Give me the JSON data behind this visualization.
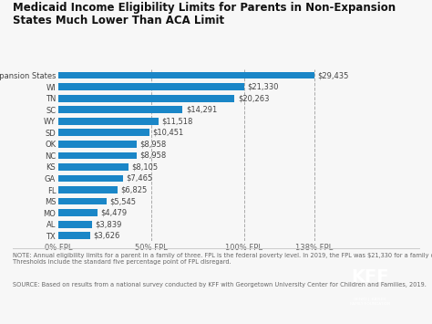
{
  "title_line1": "Medicaid Income Eligibility Limits for Parents in Non-Expansion",
  "title_line2": "States Much Lower Than ACA Limit",
  "categories": [
    "Expansion States",
    "WI",
    "TN",
    "SC",
    "WY",
    "SD",
    "OK",
    "NC",
    "KS",
    "GA",
    "FL",
    "MS",
    "MO",
    "AL",
    "TX"
  ],
  "values": [
    29435,
    21330,
    20263,
    14291,
    11518,
    10451,
    8958,
    8958,
    8105,
    7465,
    6825,
    5545,
    4479,
    3839,
    3626
  ],
  "labels": [
    "$29,435",
    "$21,330",
    "$20,263",
    "$14,291",
    "$11,518",
    "$10,451",
    "$8,958",
    "$8,958",
    "$8,105",
    "$7,465",
    "$6,825",
    "$5,545",
    "$4,479",
    "$3,839",
    "$3,626"
  ],
  "bar_color": "#1a86c7",
  "background_color": "#f7f7f7",
  "x_tick_labels": [
    "0% FPL",
    "50% FPL",
    "100% FPL",
    "138% FPL"
  ],
  "x_tick_values": [
    0,
    10665,
    21330,
    29435
  ],
  "xlim_max": 34500,
  "note_text": "NOTE: Annual eligibility limits for a parent in a family of three. FPL is the federal poverty level. In 2019, the FPL was $21,330 for a family of three.\nThresholds include the standard five percentage point of FPL disregard.",
  "source_text": "SOURCE: Based on results from a national survey conducted by KFF with Georgetown University Center for Children and Families, 2019.",
  "title_fontsize": 8.5,
  "label_fontsize": 6.0,
  "tick_fontsize": 6.0,
  "note_fontsize": 4.8,
  "kff_color": "#1a75bc"
}
